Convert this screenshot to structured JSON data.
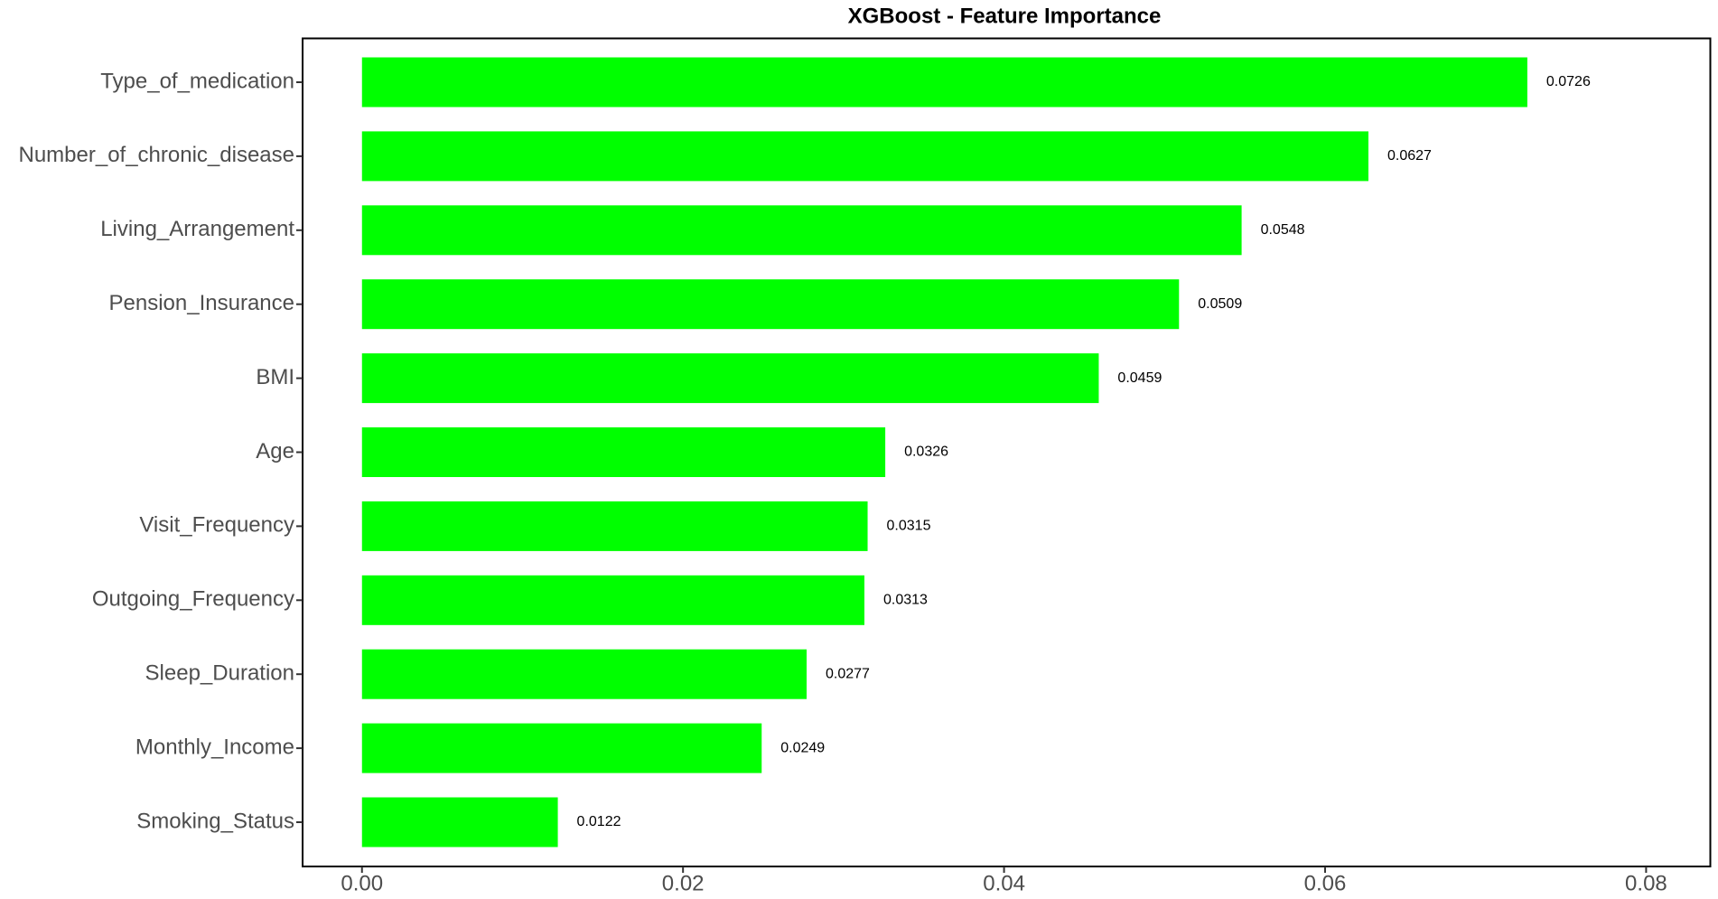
{
  "chart_data": {
    "type": "bar",
    "orientation": "horizontal",
    "title": "XGBoost - Feature Importance",
    "categories": [
      "Type_of_medication",
      "Number_of_chronic_disease",
      "Living_Arrangement",
      "Pension_Insurance",
      "BMI",
      "Age",
      "Visit_Frequency",
      "Outgoing_Frequency",
      "Sleep_Duration",
      "Monthly_Income",
      "Smoking_Status"
    ],
    "values": [
      0.0726,
      0.0627,
      0.0548,
      0.0509,
      0.0459,
      0.0326,
      0.0315,
      0.0313,
      0.0277,
      0.0249,
      0.0122
    ],
    "color": "#00ff00",
    "xlim": [
      -0.0037,
      0.084
    ],
    "xticks": [
      {
        "value": 0,
        "label": "0.00"
      },
      0.02,
      0.04,
      0.06,
      0.08
    ],
    "grid": false
  }
}
